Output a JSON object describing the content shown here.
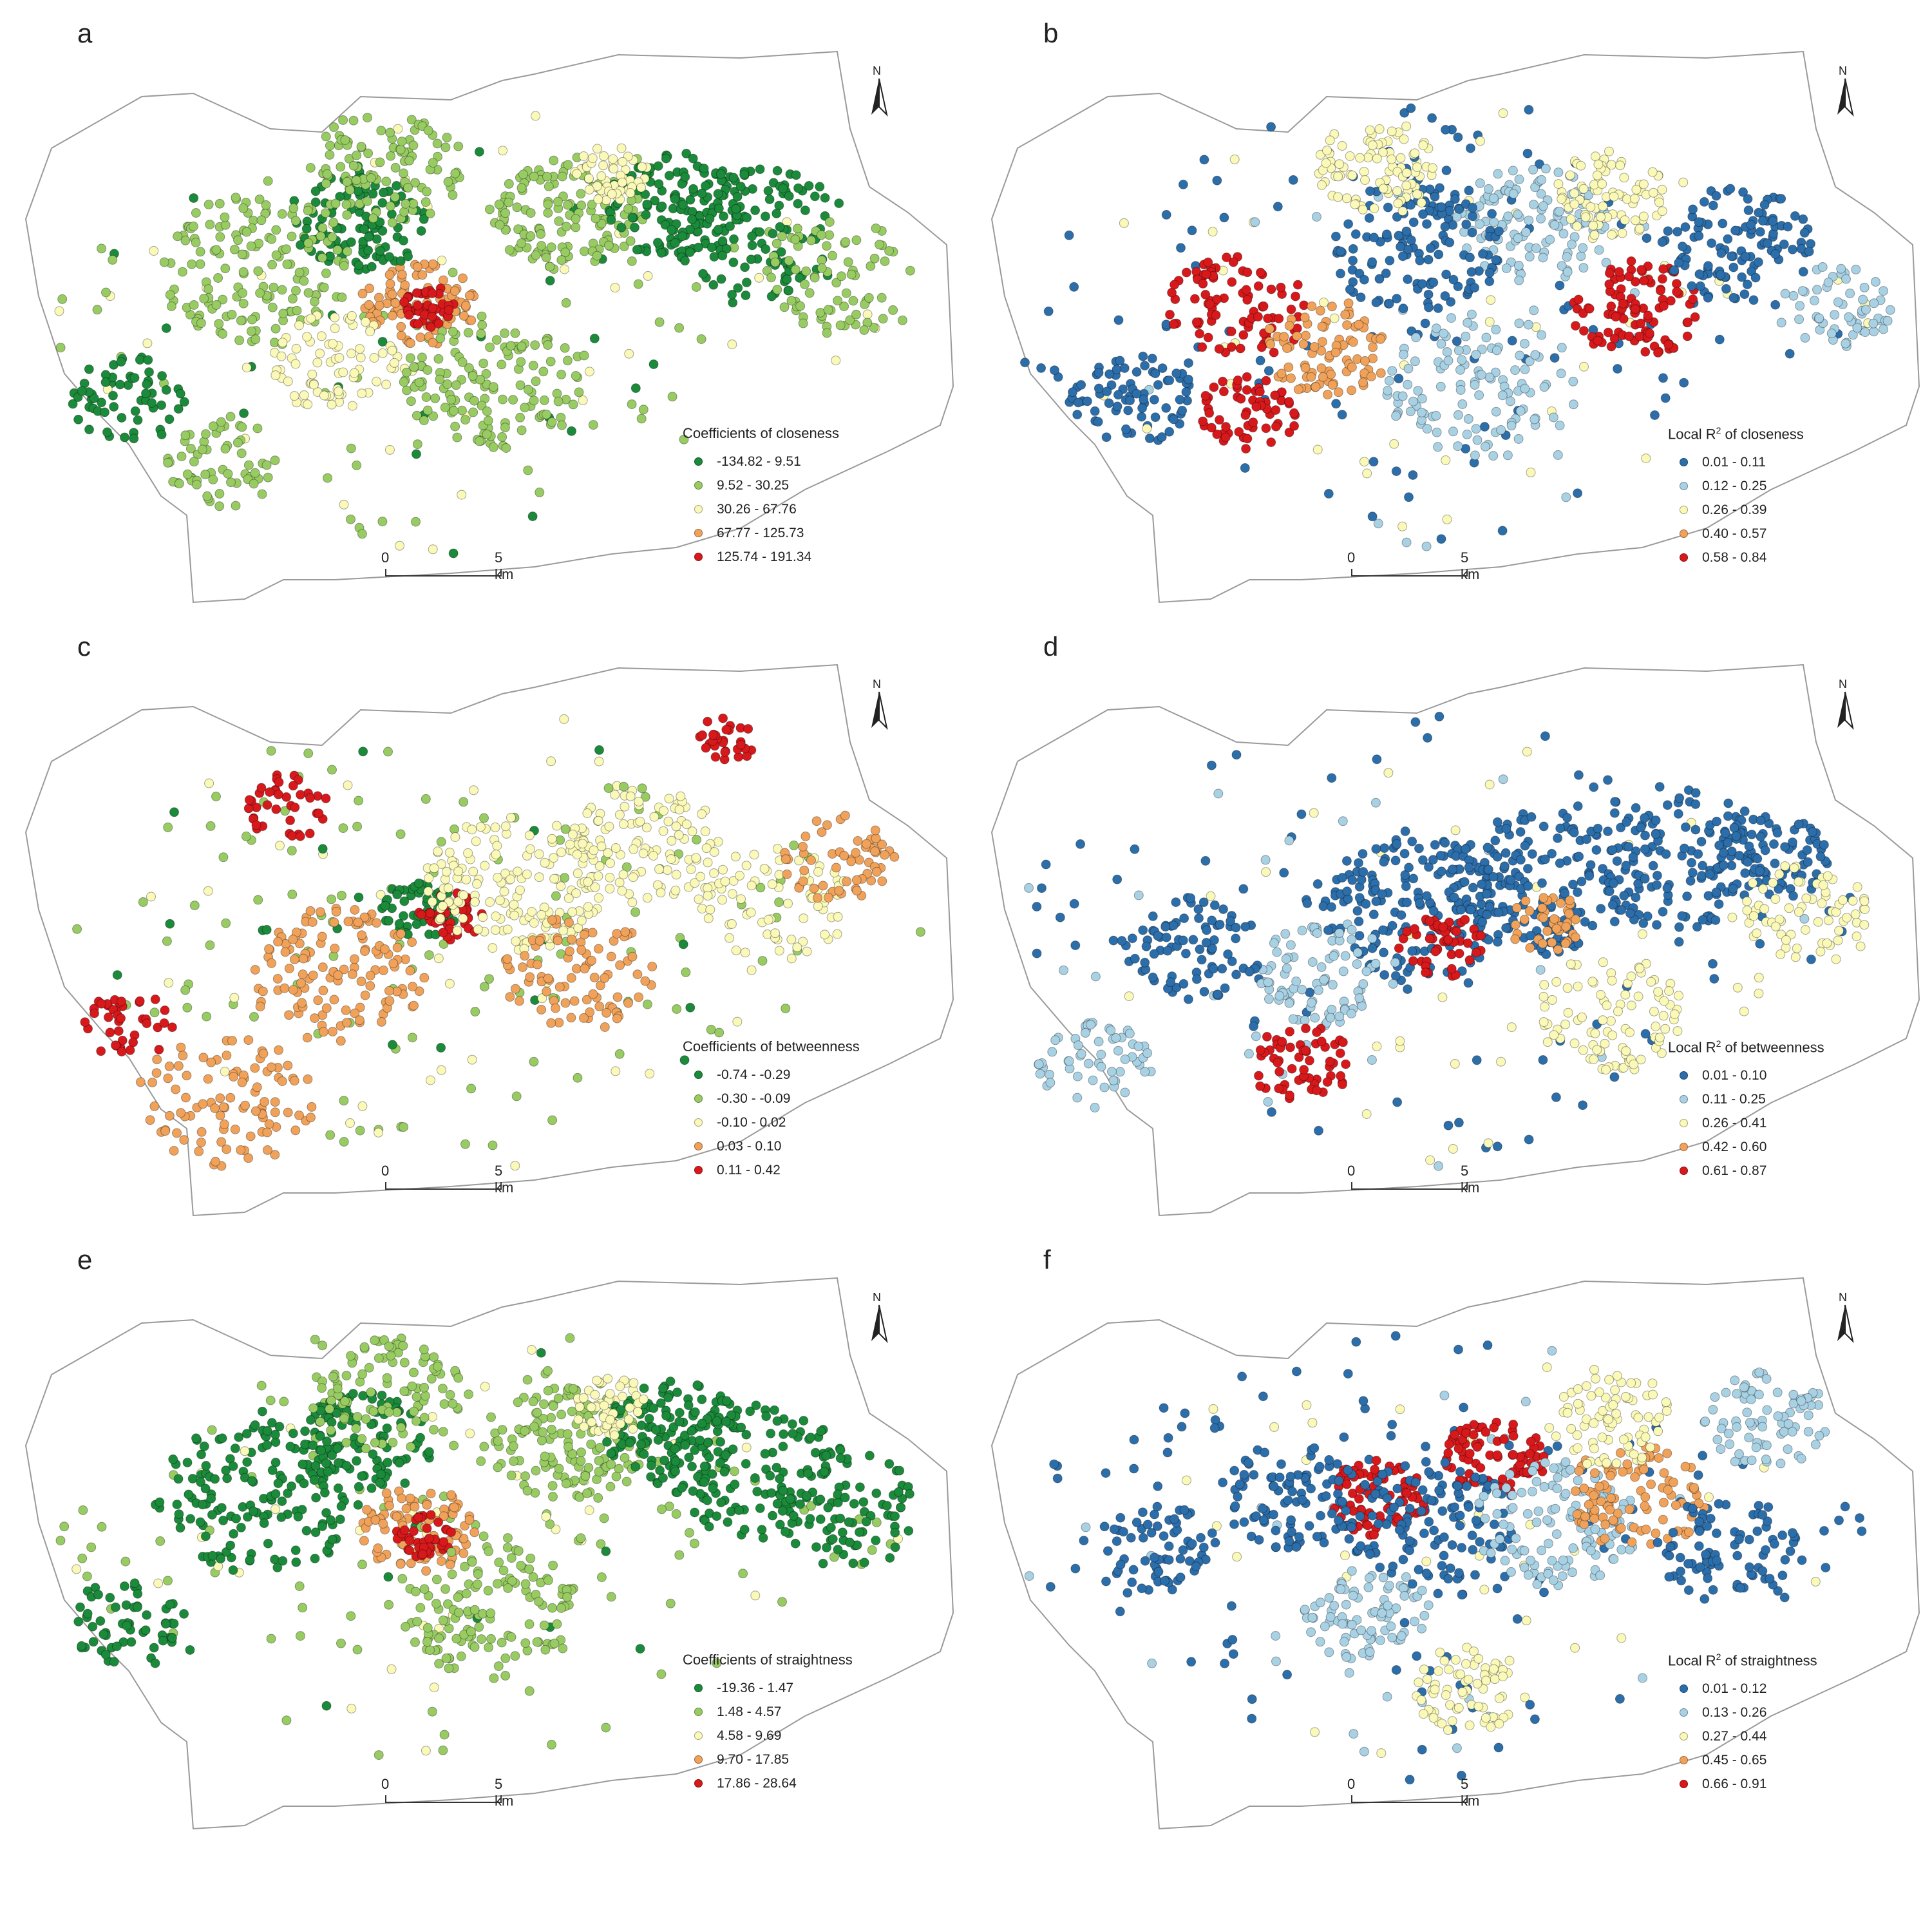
{
  "panels": [
    {
      "letter": "a",
      "legend_title": "Coefficients of closeness",
      "legend_title_sup": "",
      "legend_title_rest": "",
      "palette": "green",
      "classes": [
        "-134.82 - 9.51",
        "9.52 - 30.25",
        "30.26 - 67.76",
        "67.77 - 125.73",
        "125.74 - 191.34"
      ]
    },
    {
      "letter": "b",
      "legend_title": "Local R",
      "legend_title_sup": "2",
      "legend_title_rest": " of closeness",
      "palette": "blue",
      "classes": [
        "0.01 - 0.11",
        "0.12 - 0.25",
        "0.26 - 0.39",
        "0.40 - 0.57",
        "0.58 - 0.84"
      ]
    },
    {
      "letter": "c",
      "legend_title": "Coefficients of betweenness",
      "legend_title_sup": "",
      "legend_title_rest": "",
      "palette": "green",
      "classes": [
        "-0.74 - -0.29",
        "-0.30 - -0.09",
        "-0.10 - 0.02",
        "0.03 - 0.10",
        "0.11 - 0.42"
      ]
    },
    {
      "letter": "d",
      "legend_title": "Local R",
      "legend_title_sup": "2",
      "legend_title_rest": " of betweenness",
      "palette": "blue",
      "classes": [
        "0.01 - 0.10",
        "0.11 - 0.25",
        "0.26 - 0.41",
        "0.42 - 0.60",
        "0.61 - 0.87"
      ]
    },
    {
      "letter": "e",
      "legend_title": "Coefficients of straightness",
      "legend_title_sup": "",
      "legend_title_rest": "",
      "palette": "green",
      "classes": [
        "-19.36 - 1.47",
        "1.48 - 4.57",
        "4.58 - 9.69",
        "9.70 - 17.85",
        "17.86 - 28.64"
      ]
    },
    {
      "letter": "f",
      "legend_title": "Local R",
      "legend_title_sup": "2",
      "legend_title_rest": " of straightness",
      "palette": "blue",
      "classes": [
        "0.01 - 0.12",
        "0.13 - 0.26",
        "0.27 - 0.44",
        "0.45 - 0.65",
        "0.66 - 0.91"
      ]
    }
  ],
  "palettes": {
    "green": [
      "#1b8a3a",
      "#98cc62",
      "#fbf9b8",
      "#f0a25a",
      "#d7191c"
    ],
    "blue": [
      "#2c6eaa",
      "#a8d1e4",
      "#fbf9b8",
      "#f0a25a",
      "#d7191c"
    ]
  },
  "scale_bar": {
    "zero_label": "0",
    "end_label": "5 km"
  },
  "north_arrow": {
    "label": "N"
  }
}
